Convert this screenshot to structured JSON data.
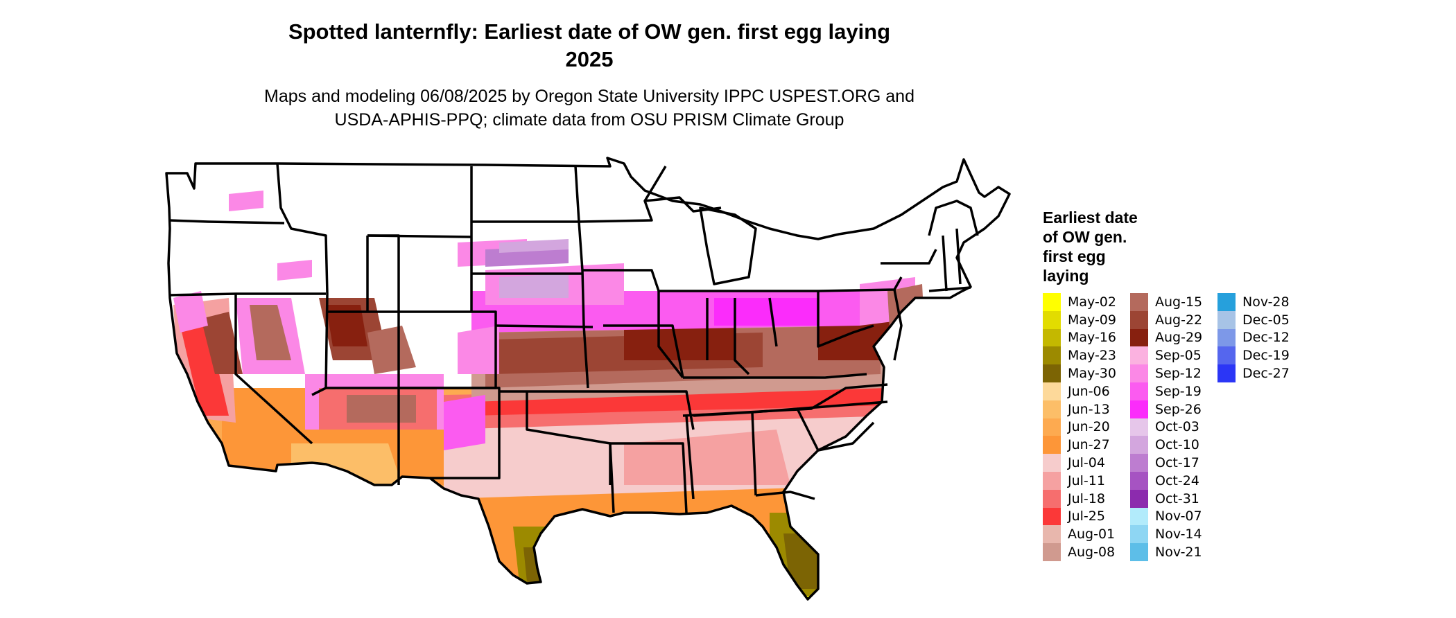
{
  "title_line1": "Spotted lanternfly: Earliest date of OW gen. first egg laying",
  "title_line2": "2025",
  "subtitle_line1": "Maps and modeling 06/08/2025 by Oregon State University IPPC USPEST.ORG and",
  "subtitle_line2": "USDA-APHIS-PPQ; climate data from OSU PRISM Climate Group",
  "legend": {
    "title": [
      "Earliest date",
      "of OW gen.",
      "first egg",
      "laying"
    ],
    "columns": [
      [
        {
          "label": "May-02",
          "color": "#ffff00"
        },
        {
          "label": "May-09",
          "color": "#e2dc00"
        },
        {
          "label": "May-16",
          "color": "#c4b800"
        },
        {
          "label": "May-23",
          "color": "#9c8a00"
        },
        {
          "label": "May-30",
          "color": "#7c6404"
        },
        {
          "label": "Jun-06",
          "color": "#fdd99a"
        },
        {
          "label": "Jun-13",
          "color": "#fcbe68"
        },
        {
          "label": "Jun-20",
          "color": "#fdaa50"
        },
        {
          "label": "Jun-27",
          "color": "#fd9638"
        },
        {
          "label": "Jul-04",
          "color": "#f6cccc"
        },
        {
          "label": "Jul-11",
          "color": "#f5a1a1"
        },
        {
          "label": "Jul-18",
          "color": "#f66e6e"
        },
        {
          "label": "Jul-25",
          "color": "#fb3838"
        },
        {
          "label": "Aug-01",
          "color": "#e8b7ad"
        },
        {
          "label": "Aug-08",
          "color": "#d09a8f"
        }
      ],
      [
        {
          "label": "Aug-15",
          "color": "#b46a5d"
        },
        {
          "label": "Aug-22",
          "color": "#9c4534"
        },
        {
          "label": "Aug-29",
          "color": "#87200f"
        },
        {
          "label": "Sep-05",
          "color": "#fbb2e0"
        },
        {
          "label": "Sep-12",
          "color": "#fb88e6"
        },
        {
          "label": "Sep-19",
          "color": "#fb5bf0"
        },
        {
          "label": "Sep-26",
          "color": "#fb2cfb"
        },
        {
          "label": "Oct-03",
          "color": "#e6c6ea"
        },
        {
          "label": "Oct-10",
          "color": "#d3a6de"
        },
        {
          "label": "Oct-17",
          "color": "#bd7dd0"
        },
        {
          "label": "Oct-24",
          "color": "#a653c2"
        },
        {
          "label": "Oct-31",
          "color": "#8c2bae"
        },
        {
          "label": "Nov-07",
          "color": "#b2ebfb"
        },
        {
          "label": "Nov-14",
          "color": "#8ed6f3"
        },
        {
          "label": "Nov-21",
          "color": "#5dbee8"
        }
      ],
      [
        {
          "label": "Nov-28",
          "color": "#26a0dc"
        },
        {
          "label": "Dec-05",
          "color": "#a7c3e6"
        },
        {
          "label": "Dec-12",
          "color": "#7d98e8"
        },
        {
          "label": "Dec-19",
          "color": "#5566ee"
        },
        {
          "label": "Dec-27",
          "color": "#2b36f6"
        }
      ]
    ]
  }
}
